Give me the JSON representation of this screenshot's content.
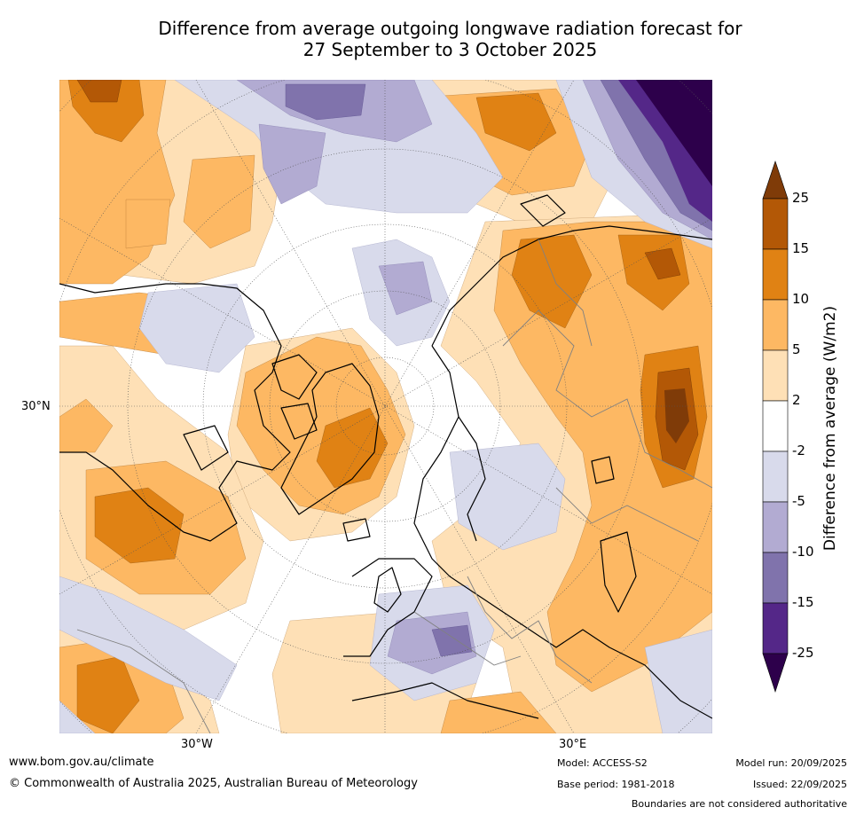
{
  "title": {
    "line1": "Difference from average outgoing longwave radiation forecast for",
    "line2": "27 September to 3 October 2025"
  },
  "axis_labels": {
    "lat_30n": "30°N",
    "lon_30w": "30°W",
    "lon_30e": "30°E"
  },
  "colorbar": {
    "title": "Difference from average (W/m2)",
    "ticks": [
      "25",
      "15",
      "10",
      "5",
      "2",
      "-2",
      "-5",
      "-10",
      "-15",
      "-25"
    ],
    "colors": {
      "extend_high": "#7f3b08",
      "b15_25": "#b35806",
      "b10_15": "#e08214",
      "b5_10": "#fdb863",
      "b2_5": "#fee0b6",
      "neutral": "#ffffff",
      "bm2_m5": "#d8daeb",
      "bm5_m10": "#b2abd2",
      "bm10_m15": "#8073ac",
      "bm15_m25": "#542788",
      "extend_low": "#2d004b"
    }
  },
  "footer": {
    "website": "www.bom.gov.au/climate",
    "copyright": "© Commonwealth of Australia 2025, Australian Bureau of Meteorology",
    "model": "Model: ACCESS-S2",
    "base_period": "Base period: 1981-2018",
    "model_run": "Model run: 20/09/2025",
    "issued": "Issued: 22/09/2025",
    "disclaimer": "Boundaries are not considered authoritative"
  }
}
